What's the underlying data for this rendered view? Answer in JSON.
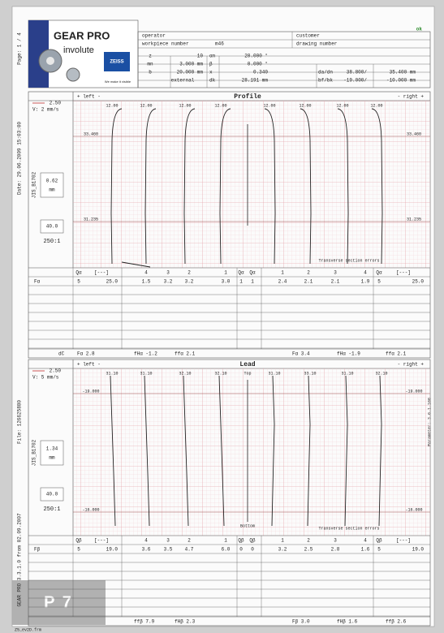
{
  "side": {
    "page": "Page: 1 / 4",
    "date": "Date: 29.06.2009 15:03:00",
    "file": "File: 126625880",
    "version": "GEAR PRO 3.3.1.0 from 02.09.2007",
    "param": "Parameter: 3.6.1.166",
    "program": "Z5_ev2D.frm"
  },
  "header": {
    "brand": "GEAR PRO",
    "product": "involute",
    "logo": "ZEISS",
    "tagline": "We make it visible",
    "status": "ok"
  },
  "info": {
    "top": [
      "operator",
      "workpiece number",
      "m46",
      "customer",
      "drawing number"
    ],
    "rows": [
      [
        "z",
        "10",
        "αn",
        "20.000 °"
      ],
      [
        "mn",
        "3.000 mm",
        "β",
        "0.000 °"
      ],
      [
        "b",
        "20.000 mm",
        "x",
        "0.340",
        "da/dn",
        "38.800/",
        "35.400 mm"
      ],
      [
        "external",
        "dk",
        "28.191 mm",
        "bf/bk",
        "-19.000/",
        "-10.000 mm"
      ]
    ]
  },
  "profile": {
    "title": "Profile",
    "left": "+ left -",
    "right": "- right +",
    "speed_top": "2.50",
    "speed": "V: 2 mm/s",
    "mag": "0.62",
    "unit": "mm",
    "zoom": "40.0",
    "ratio": "250:1",
    "norm": "JIS_B1702",
    "marks": [
      "12.00",
      "12.00",
      "12.00",
      "12.00",
      "12.00",
      "12.00",
      "12.00",
      "12.00"
    ],
    "levels": [
      "33.460",
      "31.235"
    ],
    "note": "Transverse section errors",
    "head": [
      "Qα",
      "[---]",
      "4",
      "3",
      "2",
      "1",
      "Qα",
      "Qα",
      "1",
      "2",
      "3",
      "4",
      "Qα",
      "[---]"
    ],
    "row": [
      "Fα",
      "5",
      "25.0",
      "1.5",
      "3.2",
      "3.2",
      "3.0",
      "1",
      "1",
      "2.4",
      "2.1",
      "2.1",
      "1.9",
      "5",
      "25.0"
    ],
    "summary": [
      "dC",
      "Fα 2.8",
      "fHα -1.2",
      "ffα 2.1",
      "Fα 3.4",
      "fHα -1.9",
      "ffα 2.1"
    ]
  },
  "lead": {
    "title": "Lead",
    "left": "+ left -",
    "right": "- right +",
    "speed_top": "2.50",
    "speed": "V: 5 mm/s",
    "mag": "1.34",
    "unit": "mm",
    "zoom": "40.0",
    "ratio": "250:1",
    "norm": "JIS_B1702",
    "marks": [
      "31.10",
      "31.10",
      "32.10",
      "32.10",
      "31.10",
      "33.10",
      "31.10",
      "32.10"
    ],
    "top": "Top",
    "bottom": "Bottom",
    "levels": [
      "-19.000",
      "-16.000"
    ],
    "note": "Transverse section errors",
    "head": [
      "Qβ",
      "[---]",
      "4",
      "3",
      "2",
      "1",
      "Qβ",
      "Qβ",
      "1",
      "2",
      "3",
      "4",
      "Qβ",
      "[---]"
    ],
    "row": [
      "Fβ",
      "5",
      "19.0",
      "3.6",
      "3.5",
      "4.7",
      "6.0",
      "0",
      "0",
      "3.2",
      "2.5",
      "2.8",
      "1.6",
      "5",
      "19.0"
    ],
    "summary": [
      "ffβ 7.9",
      "fHβ 2.3",
      "Fβ 3.0",
      "fHβ 1.6",
      "ffβ 2.6"
    ]
  },
  "stamp": "P 7"
}
